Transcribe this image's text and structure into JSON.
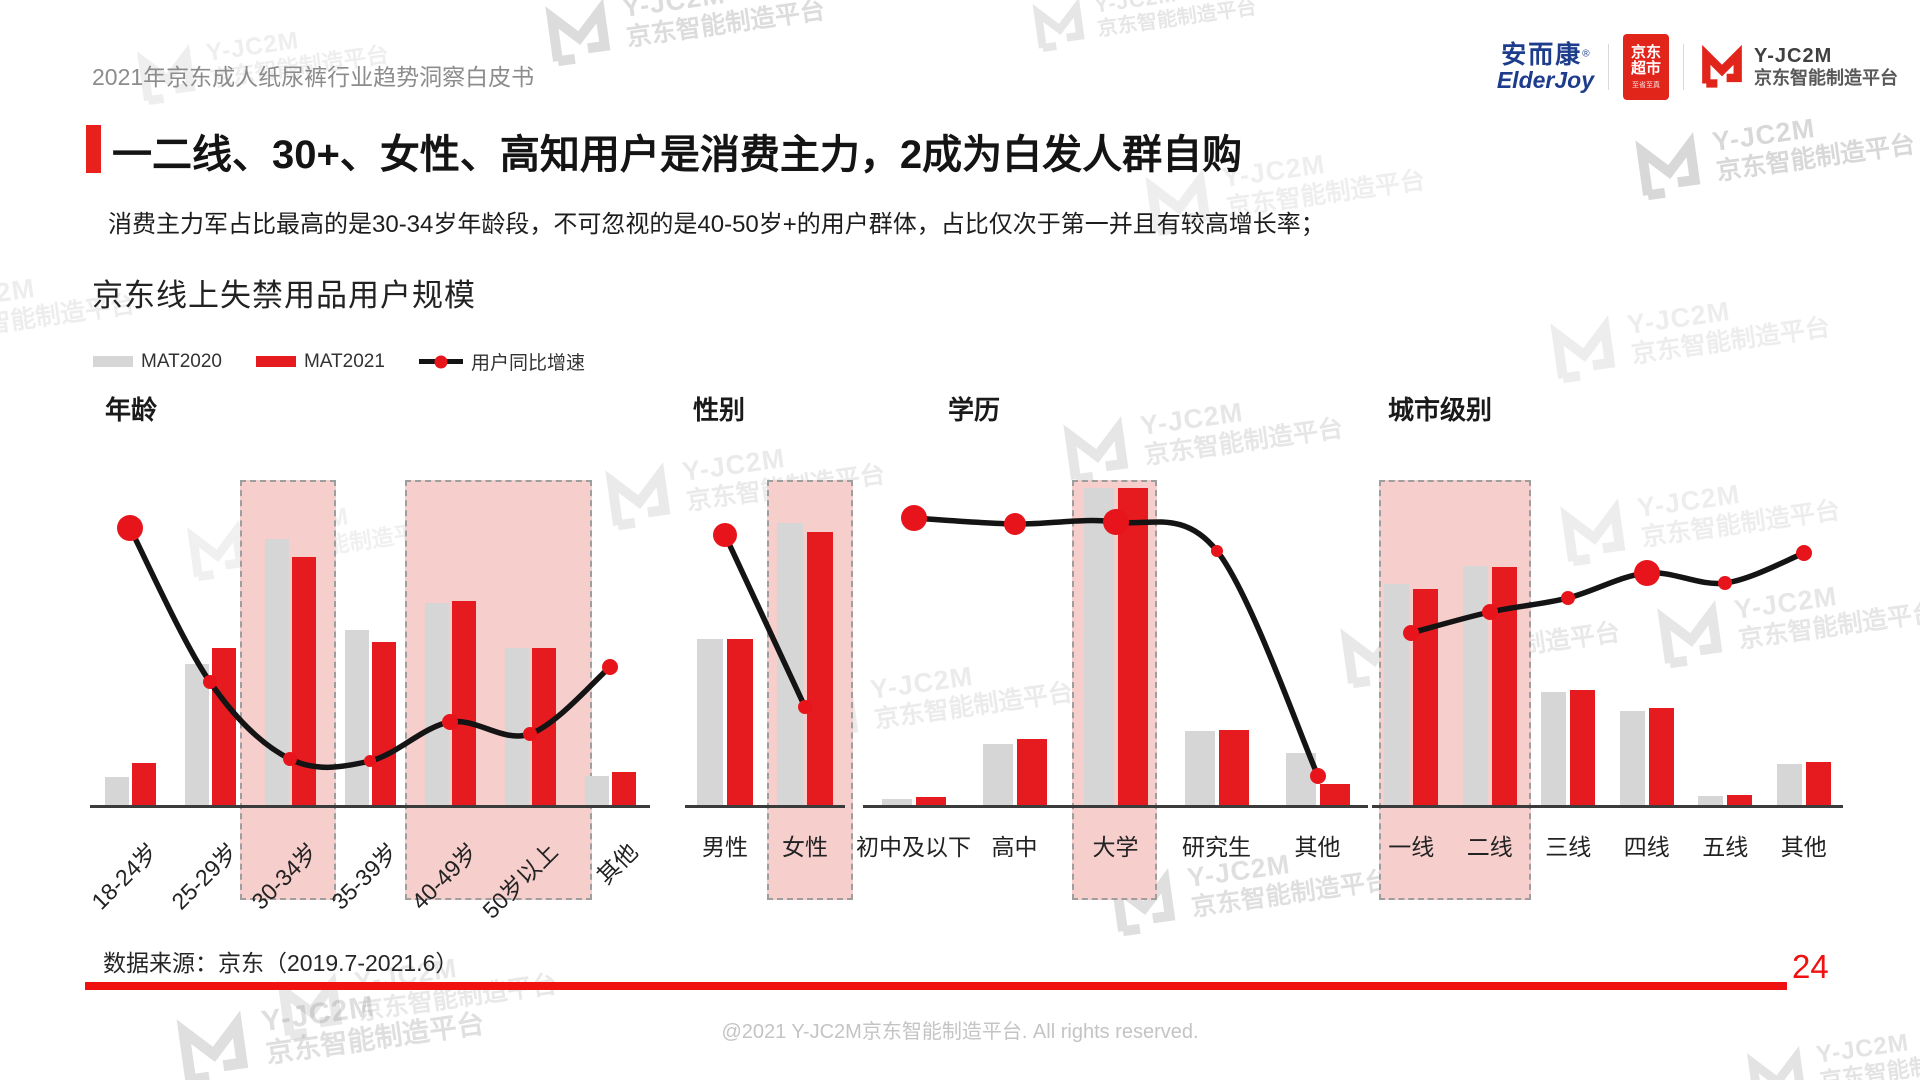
{
  "header": {
    "title": "2021年京东成人纸尿裤行业趋势洞察白皮书"
  },
  "logos": {
    "elderjoy": {
      "cn": "安而康",
      "reg": "®",
      "en": "ElderJoy"
    },
    "jd_market": {
      "line1": "京东",
      "line2": "超市",
      "sub": "至省至真"
    },
    "yjc2m": {
      "name": "Y-JC2M",
      "sub": "京东智能制造平台"
    }
  },
  "slide": {
    "title": "一二线、30+、女性、高知用户是消费主力，2成为白发人群自购",
    "subtitle": "消费主力军占比最高的是30-34岁年龄段，不可忽视的是40-50岁+的用户群体，占比仅次于第一并且有较高增长率；",
    "chart_heading": "京东线上失禁用品用户规模"
  },
  "legend": {
    "items": [
      {
        "label": "MAT2020",
        "type": "swatch-gray"
      },
      {
        "label": "MAT2021",
        "type": "swatch-red"
      },
      {
        "label": "用户同比增速",
        "type": "line-dot"
      }
    ]
  },
  "watermark": {
    "t1": "Y-JC2M",
    "t2": "京东智能制造平台"
  },
  "footer": {
    "source": "数据来源：京东（2019.7-2021.6）",
    "page": "24",
    "copyright": "@2021 Y-JC2M京东智能制造平台. All rights reserved."
  },
  "colors": {
    "mat2020_bar": "#D6D6D6",
    "mat2021_bar": "#E61B1F",
    "growth_line": "#141414",
    "dot_red": "#E8141B",
    "highlight_fill": "#F6CFCD",
    "highlight_border": "#9E9E9E",
    "accent_red": "#E8211D",
    "brand_blue": "#1E3C8C",
    "jd_red": "#E1251B",
    "footer_rule_red": "#F01111"
  },
  "chart_data": [
    {
      "type": "bar",
      "title": "年龄",
      "categories": [
        "18-24岁",
        "25-29岁",
        "30-34岁",
        "35-39岁",
        "40-49岁",
        "50岁以上",
        "其他"
      ],
      "series": [
        {
          "name": "MAT2020",
          "values": [
            6.8,
            34.6,
            65.1,
            42.9,
            49.3,
            38.5,
            7.1
          ]
        },
        {
          "name": "MAT2021",
          "values": [
            10.2,
            38.3,
            60.7,
            39.8,
            50.0,
            38.3,
            8.0
          ]
        }
      ],
      "line": {
        "name": "用户同比增速",
        "values": [
          67.8,
          30.0,
          11.2,
          10.7,
          20.2,
          17.3,
          33.7
        ],
        "dot_radius": [
          13,
          7,
          7,
          6,
          8,
          7,
          8
        ]
      },
      "highlighted_categories": [
        "30-34岁",
        "40-49岁",
        "50岁以上"
      ]
    },
    {
      "type": "bar",
      "title": "性别",
      "categories": [
        "男性",
        "女性"
      ],
      "series": [
        {
          "name": "MAT2020",
          "values": [
            40.7,
            69.0
          ]
        },
        {
          "name": "MAT2021",
          "values": [
            40.7,
            66.8
          ]
        }
      ],
      "line": {
        "name": "用户同比增速",
        "values": [
          65.9,
          23.9
        ],
        "dot_radius": [
          12,
          7
        ]
      },
      "highlighted_categories": [
        "女性"
      ]
    },
    {
      "type": "bar",
      "title": "学历",
      "categories": [
        "初中及以下",
        "高中",
        "大学",
        "研究生",
        "其他"
      ],
      "series": [
        {
          "name": "MAT2020",
          "values": [
            1.5,
            14.9,
            77.6,
            18.0,
            12.7
          ]
        },
        {
          "name": "MAT2021",
          "values": [
            2.0,
            16.1,
            77.6,
            18.3,
            5.1
          ]
        }
      ],
      "line": {
        "name": "用户同比增速",
        "values": [
          70.2,
          68.8,
          69.3,
          62.2,
          7.1
        ],
        "dot_radius": [
          13,
          11,
          13,
          6,
          8
        ]
      },
      "highlighted_categories": [
        "大学"
      ]
    },
    {
      "type": "bar",
      "title": "城市级别",
      "categories": [
        "一线",
        "二线",
        "三线",
        "四线",
        "五线",
        "其他"
      ],
      "series": [
        {
          "name": "MAT2020",
          "values": [
            54.1,
            58.5,
            27.6,
            22.9,
            2.2,
            10.0
          ]
        },
        {
          "name": "MAT2021",
          "values": [
            52.7,
            58.3,
            28.0,
            23.7,
            2.4,
            10.5
          ]
        }
      ],
      "line": {
        "name": "用户同比增速",
        "values": [
          42.0,
          47.1,
          50.5,
          56.8,
          54.4,
          61.5
        ],
        "dot_radius": [
          8,
          8,
          7,
          13,
          7,
          8
        ]
      },
      "highlighted_categories": [
        "一线",
        "二线"
      ]
    }
  ]
}
